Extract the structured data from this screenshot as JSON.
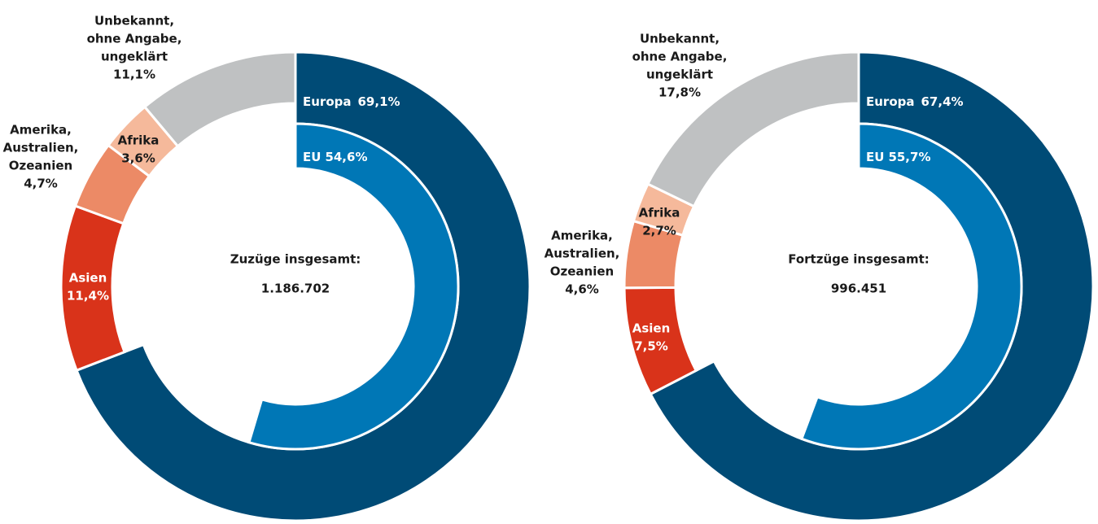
{
  "chart_data": [
    {
      "type": "pie",
      "center_title": "Zuzüge insgesamt:",
      "center_value": "1.186.702",
      "categories": [
        [
          "Europa"
        ],
        [
          "Asien"
        ],
        [
          "Amerika,",
          "Australien,",
          "Ozeanien"
        ],
        [
          "Afrika"
        ],
        [
          "Unbekannt,",
          "ohne Angabe,",
          "ungeklärt"
        ]
      ],
      "values": [
        69.1,
        11.4,
        4.7,
        3.6,
        11.1
      ],
      "value_labels": [
        "69,1%",
        "11,4%",
        "4,7%",
        "3,6%",
        "11,1%"
      ],
      "colors": [
        "#004b76",
        "#d9331a",
        "#ec8a66",
        "#f5b99b",
        "#bfc1c2"
      ],
      "inner": {
        "name": "EU",
        "value": 54.6,
        "value_label": "54,6%",
        "color": "#0077b6"
      }
    },
    {
      "type": "pie",
      "center_title": "Fortzüge insgesamt:",
      "center_value": "996.451",
      "categories": [
        [
          "Europa"
        ],
        [
          "Asien"
        ],
        [
          "Amerika,",
          "Australien,",
          "Ozeanien"
        ],
        [
          "Afrika"
        ],
        [
          "Unbekannt,",
          "ohne Angabe,",
          "ungeklärt"
        ]
      ],
      "values": [
        67.4,
        7.5,
        4.6,
        2.7,
        17.8
      ],
      "value_labels": [
        "67,4%",
        "7,5%",
        "4,6%",
        "2,7%",
        "17,8%"
      ],
      "colors": [
        "#004b76",
        "#d9331a",
        "#ec8a66",
        "#f5b99b",
        "#bfc1c2"
      ],
      "inner": {
        "name": "EU",
        "value": 55.7,
        "value_label": "55,7%",
        "color": "#0077b6"
      }
    }
  ]
}
